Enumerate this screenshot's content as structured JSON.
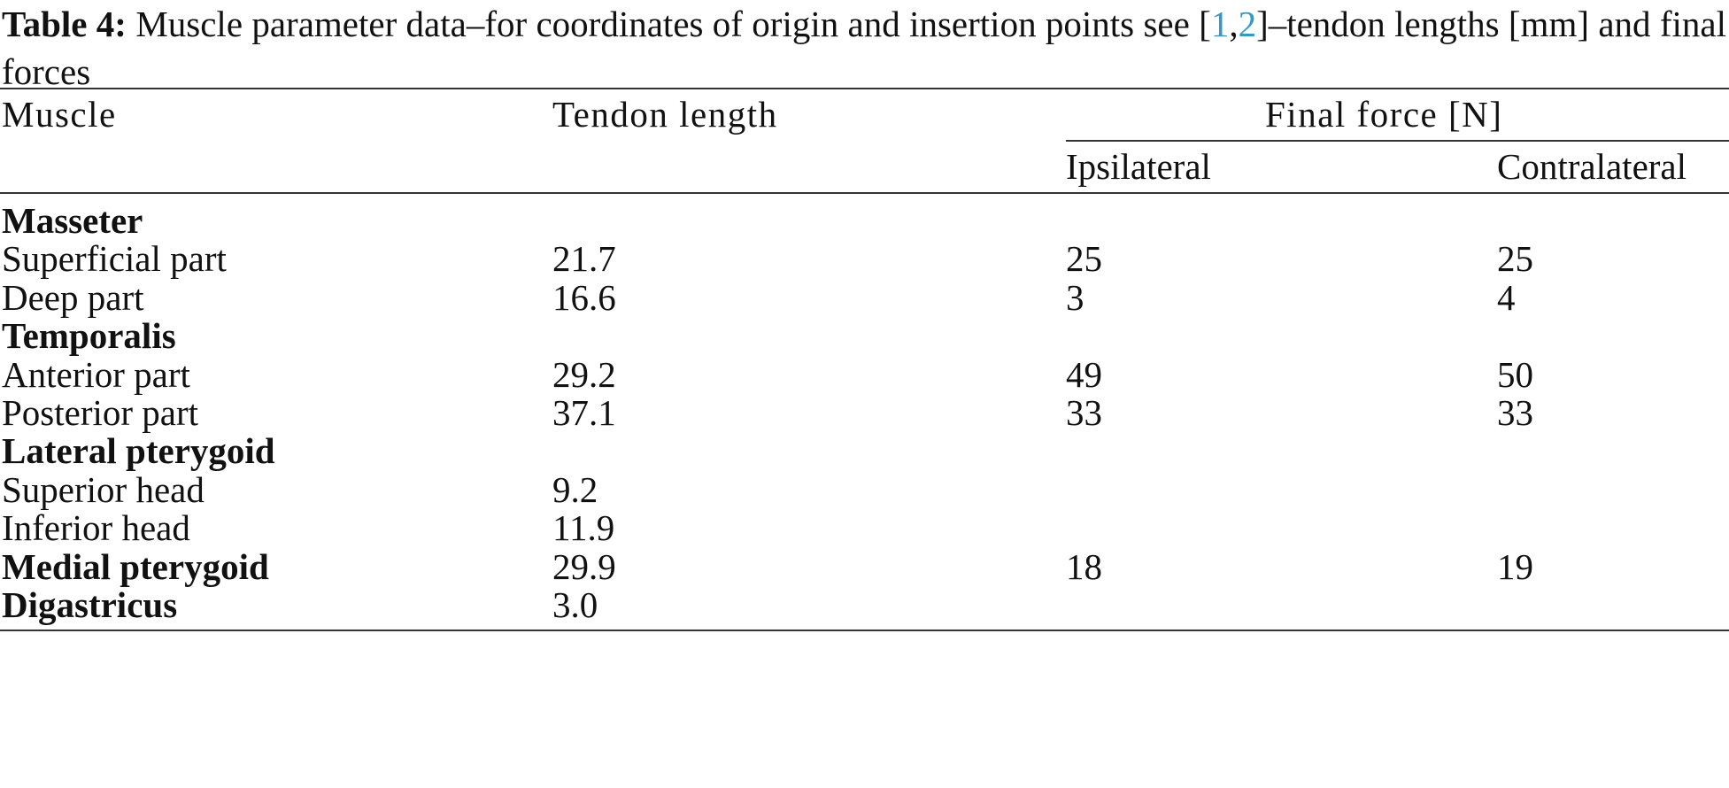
{
  "caption": {
    "label": "Table 4:",
    "text_before_refs": "Muscle parameter data–for coordinates of origin and insertion points see [",
    "ref1": "1",
    "ref_sep": ",",
    "ref2": "2",
    "text_after_refs": "]–tendon lengths [mm] and final forces"
  },
  "header": {
    "muscle": "Muscle",
    "tendon_length": "Tendon length",
    "final_force": "Final force [N]",
    "ipsilateral": "Ipsilateral",
    "contralateral": "Contralateral"
  },
  "rows": [
    {
      "muscle": "Masseter",
      "group": true,
      "tendon": "",
      "ipsi": "",
      "contra": ""
    },
    {
      "muscle": "Superficial part",
      "group": false,
      "tendon": "21.7",
      "ipsi": "25",
      "contra": "25"
    },
    {
      "muscle": "Deep part",
      "group": false,
      "tendon": "16.6",
      "ipsi": "3",
      "contra": "4"
    },
    {
      "muscle": "Temporalis",
      "group": true,
      "tendon": "",
      "ipsi": "",
      "contra": ""
    },
    {
      "muscle": "Anterior part",
      "group": false,
      "tendon": "29.2",
      "ipsi": "49",
      "contra": "50"
    },
    {
      "muscle": "Posterior part",
      "group": false,
      "tendon": "37.1",
      "ipsi": "33",
      "contra": "33"
    },
    {
      "muscle": "Lateral pterygoid",
      "group": true,
      "tendon": "",
      "ipsi": "",
      "contra": ""
    },
    {
      "muscle": "Superior head",
      "group": false,
      "tendon": "9.2",
      "ipsi": "",
      "contra": ""
    },
    {
      "muscle": "Inferior head",
      "group": false,
      "tendon": "11.9",
      "ipsi": "",
      "contra": ""
    },
    {
      "muscle": "Medial pterygoid",
      "group": true,
      "tendon": "29.9",
      "ipsi": "18",
      "contra": "19"
    },
    {
      "muscle": "Digastricus",
      "group": true,
      "tendon": "3.0",
      "ipsi": "",
      "contra": ""
    }
  ],
  "colors": {
    "text": "#111111",
    "reference_link": "#3399cc",
    "rule": "#333333"
  }
}
